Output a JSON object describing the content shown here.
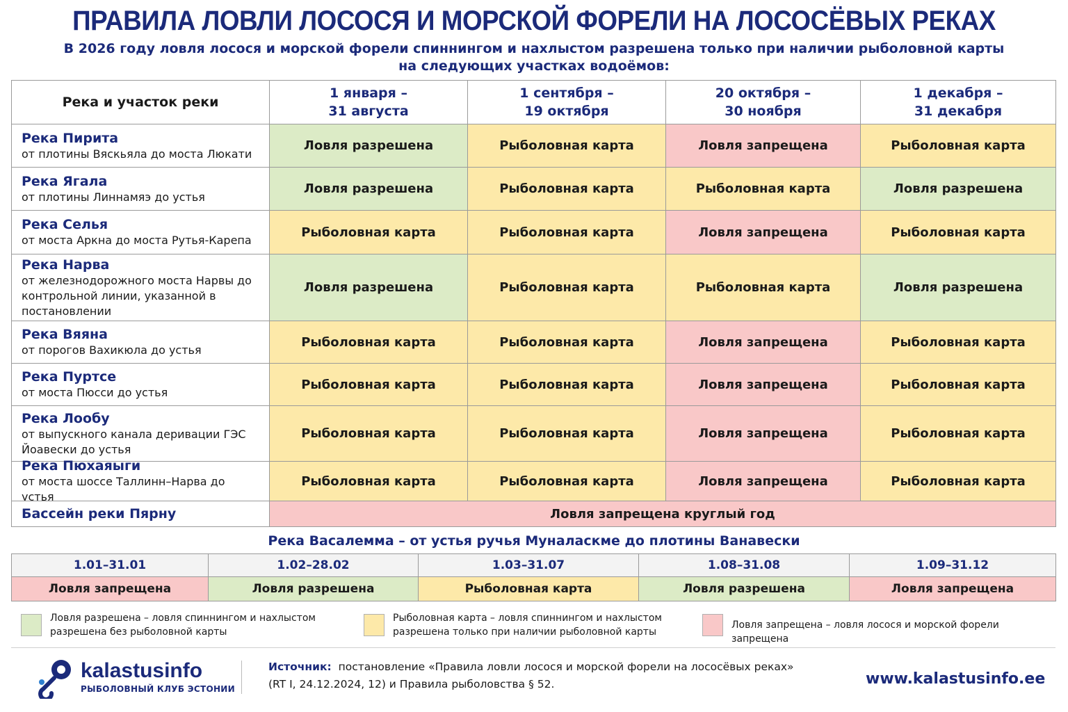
{
  "header": {
    "title": "ПРАВИЛА ЛОВЛИ ЛОСОСЯ И МОРСКОЙ ФОРЕЛИ НА ЛОСОСЁВЫХ РЕКАХ",
    "subtitle": "В 2026 году ловля лосося и морской форели спиннингом и нахлыстом разрешена только при наличии рыболовной карты\nна следующих участках водоёмов:"
  },
  "table": {
    "header": [
      "Река и участок реки",
      "1 января –\n31 августа",
      "1 сентября –\n19 октября",
      "20 октября –\n30 ноября",
      "1 декабря –\n31 декабря"
    ],
    "rows": [
      {
        "river": "Река Пирита",
        "section": "от плотины Вяскьяла до моста Люкати",
        "cells": [
          "Ловля разрешена",
          "Рыболовная карта",
          "Ловля запрещена",
          "Рыболовная карта"
        ]
      },
      {
        "river": "Река Ягала",
        "section": "от плотины Линнамяэ до устья",
        "cells": [
          "Ловля разрешена",
          "Рыболовная карта",
          "Рыболовная карта",
          "Ловля разрешена"
        ]
      },
      {
        "river": "Река Селья",
        "section": "от моста Аркна до моста Рутья-Карепа",
        "cells": [
          "Рыболовная карта",
          "Рыболовная карта",
          "Ловля запрещена",
          "Рыболовная карта"
        ]
      },
      {
        "river": "Река Нарва",
        "section": "от железнодорожного моста Нарвы до контрольной линии, указанной в постановлении",
        "cells": [
          "Ловля разрешена",
          "Рыболовная карта",
          "Рыболовная карта",
          "Ловля разрешена"
        ]
      },
      {
        "river": "Река Вяяна",
        "section": "от порогов Вахикюла до устья",
        "cells": [
          "Рыболовная карта",
          "Рыболовная карта",
          "Ловля запрещена",
          "Рыболовная карта"
        ]
      },
      {
        "river": "Река Пуртсе",
        "section": "от моста Пюсси до устья",
        "cells": [
          "Рыболовная карта",
          "Рыболовная карта",
          "Ловля запрещена",
          "Рыболовная карта"
        ]
      },
      {
        "river": "Река Лообу",
        "section": "от выпускного канала деривации ГЭС Йоавески до устья",
        "cells": [
          "Рыболовная карта",
          "Рыболовная карта",
          "Ловля запрещена",
          "Рыболовная карта"
        ]
      },
      {
        "river": "Река Пюхаяыги",
        "section": "от моста шоссе Таллинн–Нарва до устья",
        "cells": [
          "Рыболовная карта",
          "Рыболовная карта",
          "Ловля запрещена",
          "Рыболовная карта"
        ]
      },
      {
        "river": "Бассейн реки Пярну",
        "cells": [
          "Ловля запрещена круглый год"
        ]
      }
    ]
  },
  "vasalemma": {
    "title": "Река Васалемма – от устья ручья Муналаскме до плотины Ванавески",
    "periods": [
      "1.01–31.01",
      "1.02–28.02",
      "1.03–31.07",
      "1.08–31.08",
      "1.09–31.12"
    ],
    "statuses": [
      "Ловля запрещена",
      "Ловля разрешена",
      "Рыболовная карта",
      "Ловля разрешена",
      "Ловля запрещена"
    ]
  },
  "legend": [
    {
      "term": "Ловля разрешена",
      "text": "– ловля спиннингом и нахлыстом разрешена без рыболовной карты",
      "color": "#dcebc6"
    },
    {
      "term": "Рыболовная карта",
      "text": "– ловля спиннингом и нахлыстом разрешена только при наличии рыболовной карты",
      "color": "#fde9a9"
    },
    {
      "term": "Ловля запрещена",
      "text": "– ловля лосося и морской форели запрещена",
      "color": "#f9c8c8"
    }
  ],
  "footer": {
    "logo": "kalastusinfo",
    "logo_subtitle": "РЫБОЛОВНЫЙ КЛУБ ЭСТОНИИ",
    "source_label": "Источник:",
    "source_text": "постановление «Правила ловли лосося и морской форели на лососёвых реках» (RT I, 24.12.2024, 12) и Правила рыболовства § 52.",
    "url": "www.kalastusinfo.ee"
  }
}
